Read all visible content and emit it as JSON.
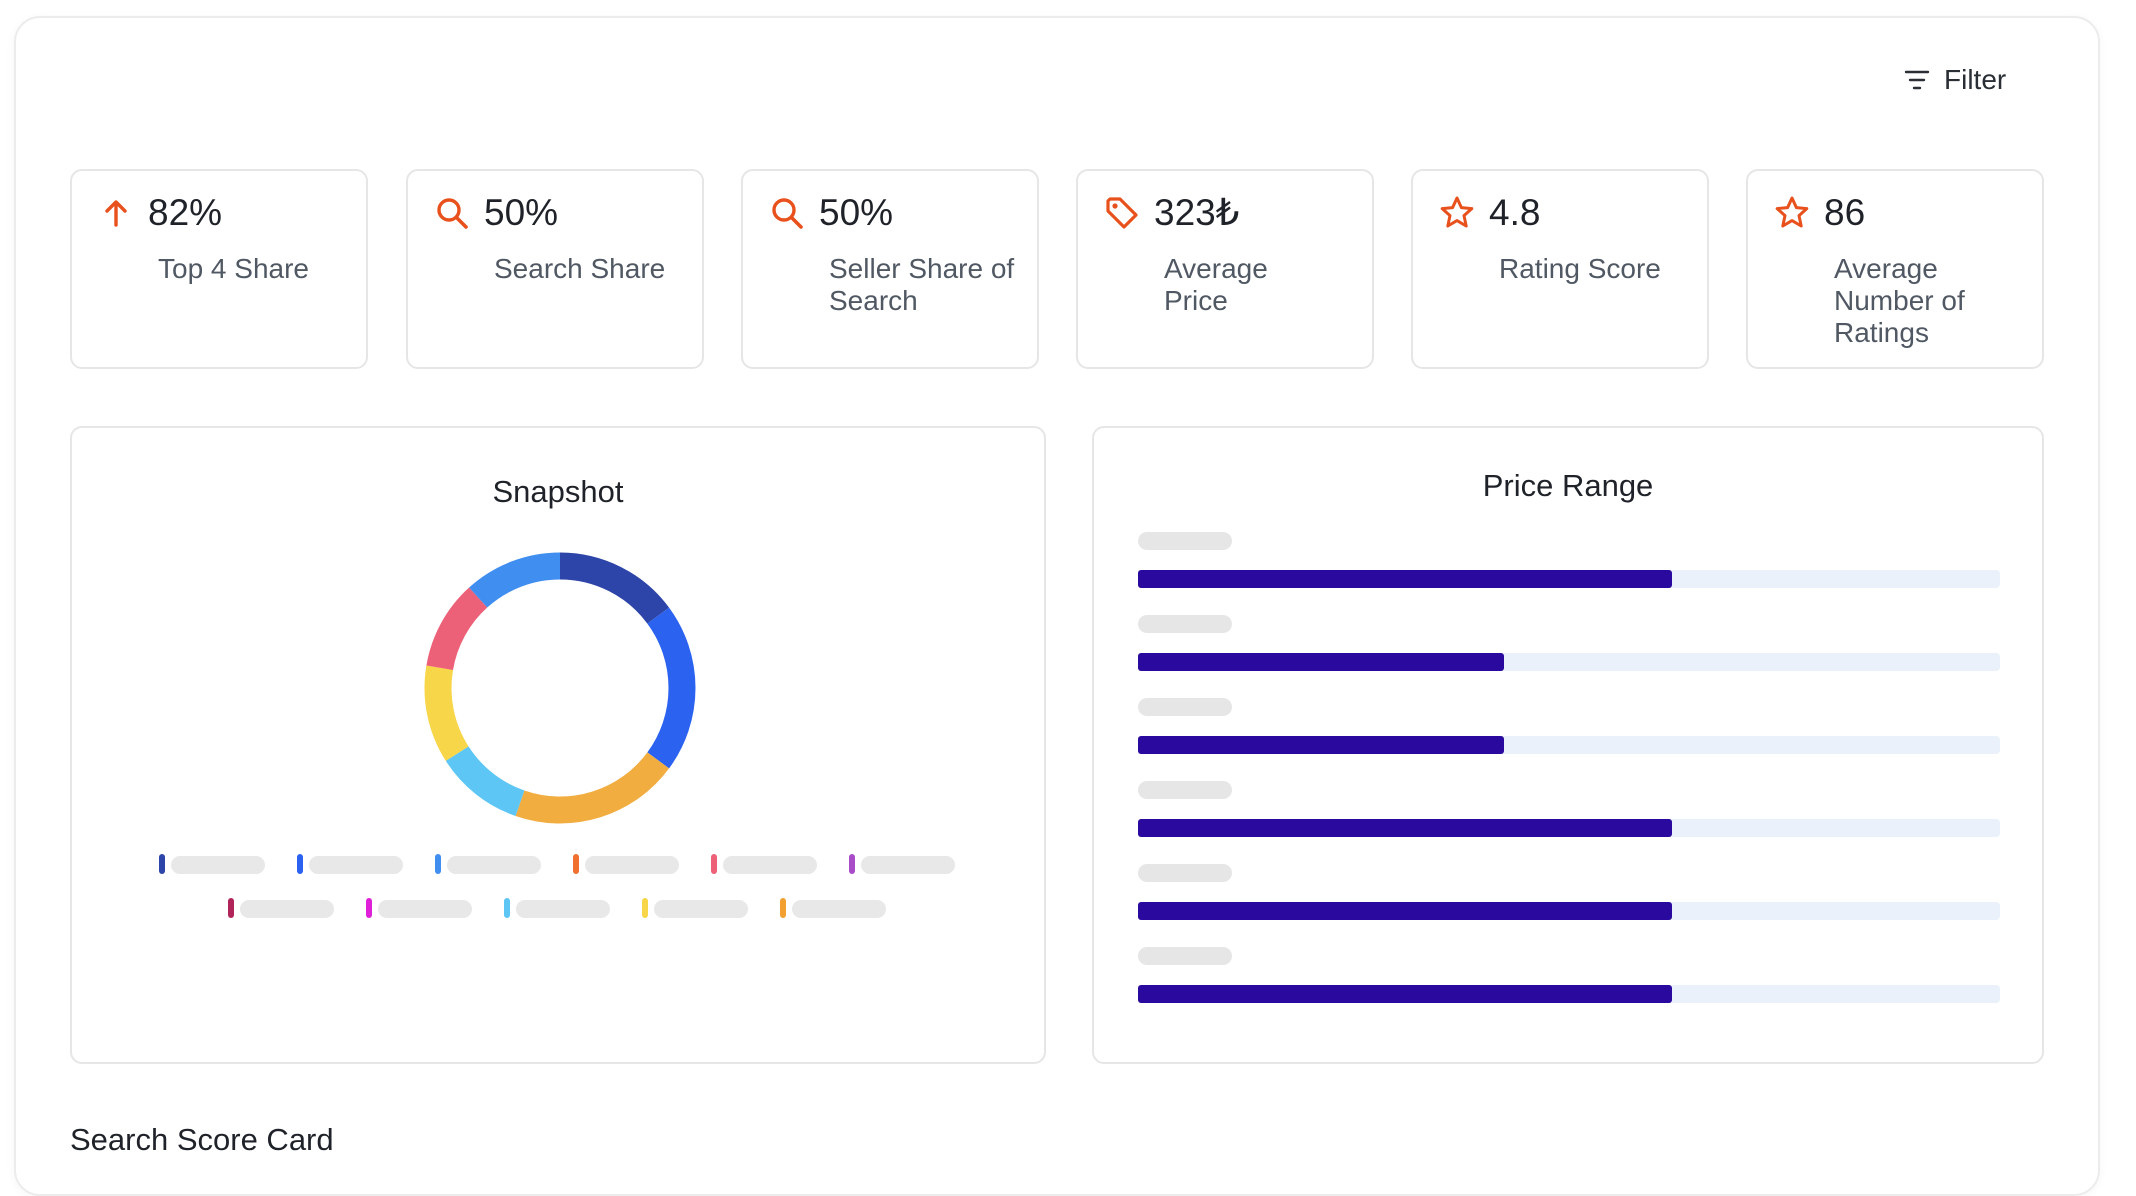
{
  "filter": {
    "label": "Filter",
    "icon": "filter-icon"
  },
  "stats": [
    {
      "value": "82%",
      "label": "Top 4 Share",
      "icon": "arrow-up-icon"
    },
    {
      "value": "50%",
      "label": "Search Share",
      "icon": "search-icon"
    },
    {
      "value": "50%",
      "label": "Seller Share of Search",
      "icon": "search-icon"
    },
    {
      "value": "323₺",
      "label": "Average Price",
      "icon": "price-tag-icon"
    },
    {
      "value": "4.8",
      "label": "Rating Score",
      "icon": "star-icon"
    },
    {
      "value": "86",
      "label": "Average Number of Ratings",
      "icon": "star-icon"
    }
  ],
  "accent_color": "#e8501c",
  "snapshot": {
    "title": "Snapshot",
    "segments": [
      {
        "value": 14,
        "color": "#2d44a8"
      },
      {
        "value": 19,
        "color": "#2b63f0"
      },
      {
        "value": 19,
        "color": "#f2ad40"
      },
      {
        "value": 10,
        "color": "#5ec6f5"
      },
      {
        "value": 11,
        "color": "#f8d64a"
      },
      {
        "value": 10,
        "color": "#ec6078"
      },
      {
        "value": 11,
        "color": "#3f8ef0"
      }
    ],
    "legend_colors": [
      [
        "#2d44a8",
        "#2b63f0",
        "#3f8ef0",
        "#f07030",
        "#ec6078",
        "#a84cc8"
      ],
      [
        "#b0245a",
        "#e020d8",
        "#5ec6f5",
        "#f8d64a",
        "#f2a030"
      ]
    ]
  },
  "price_range": {
    "title": "Price Range",
    "bar_color": "#2a0a9e",
    "track_color": "#eaf1fb",
    "fills": [
      0.62,
      0.425,
      0.425,
      0.62,
      0.62,
      0.62
    ]
  },
  "section": {
    "title": "Search Score Card"
  }
}
